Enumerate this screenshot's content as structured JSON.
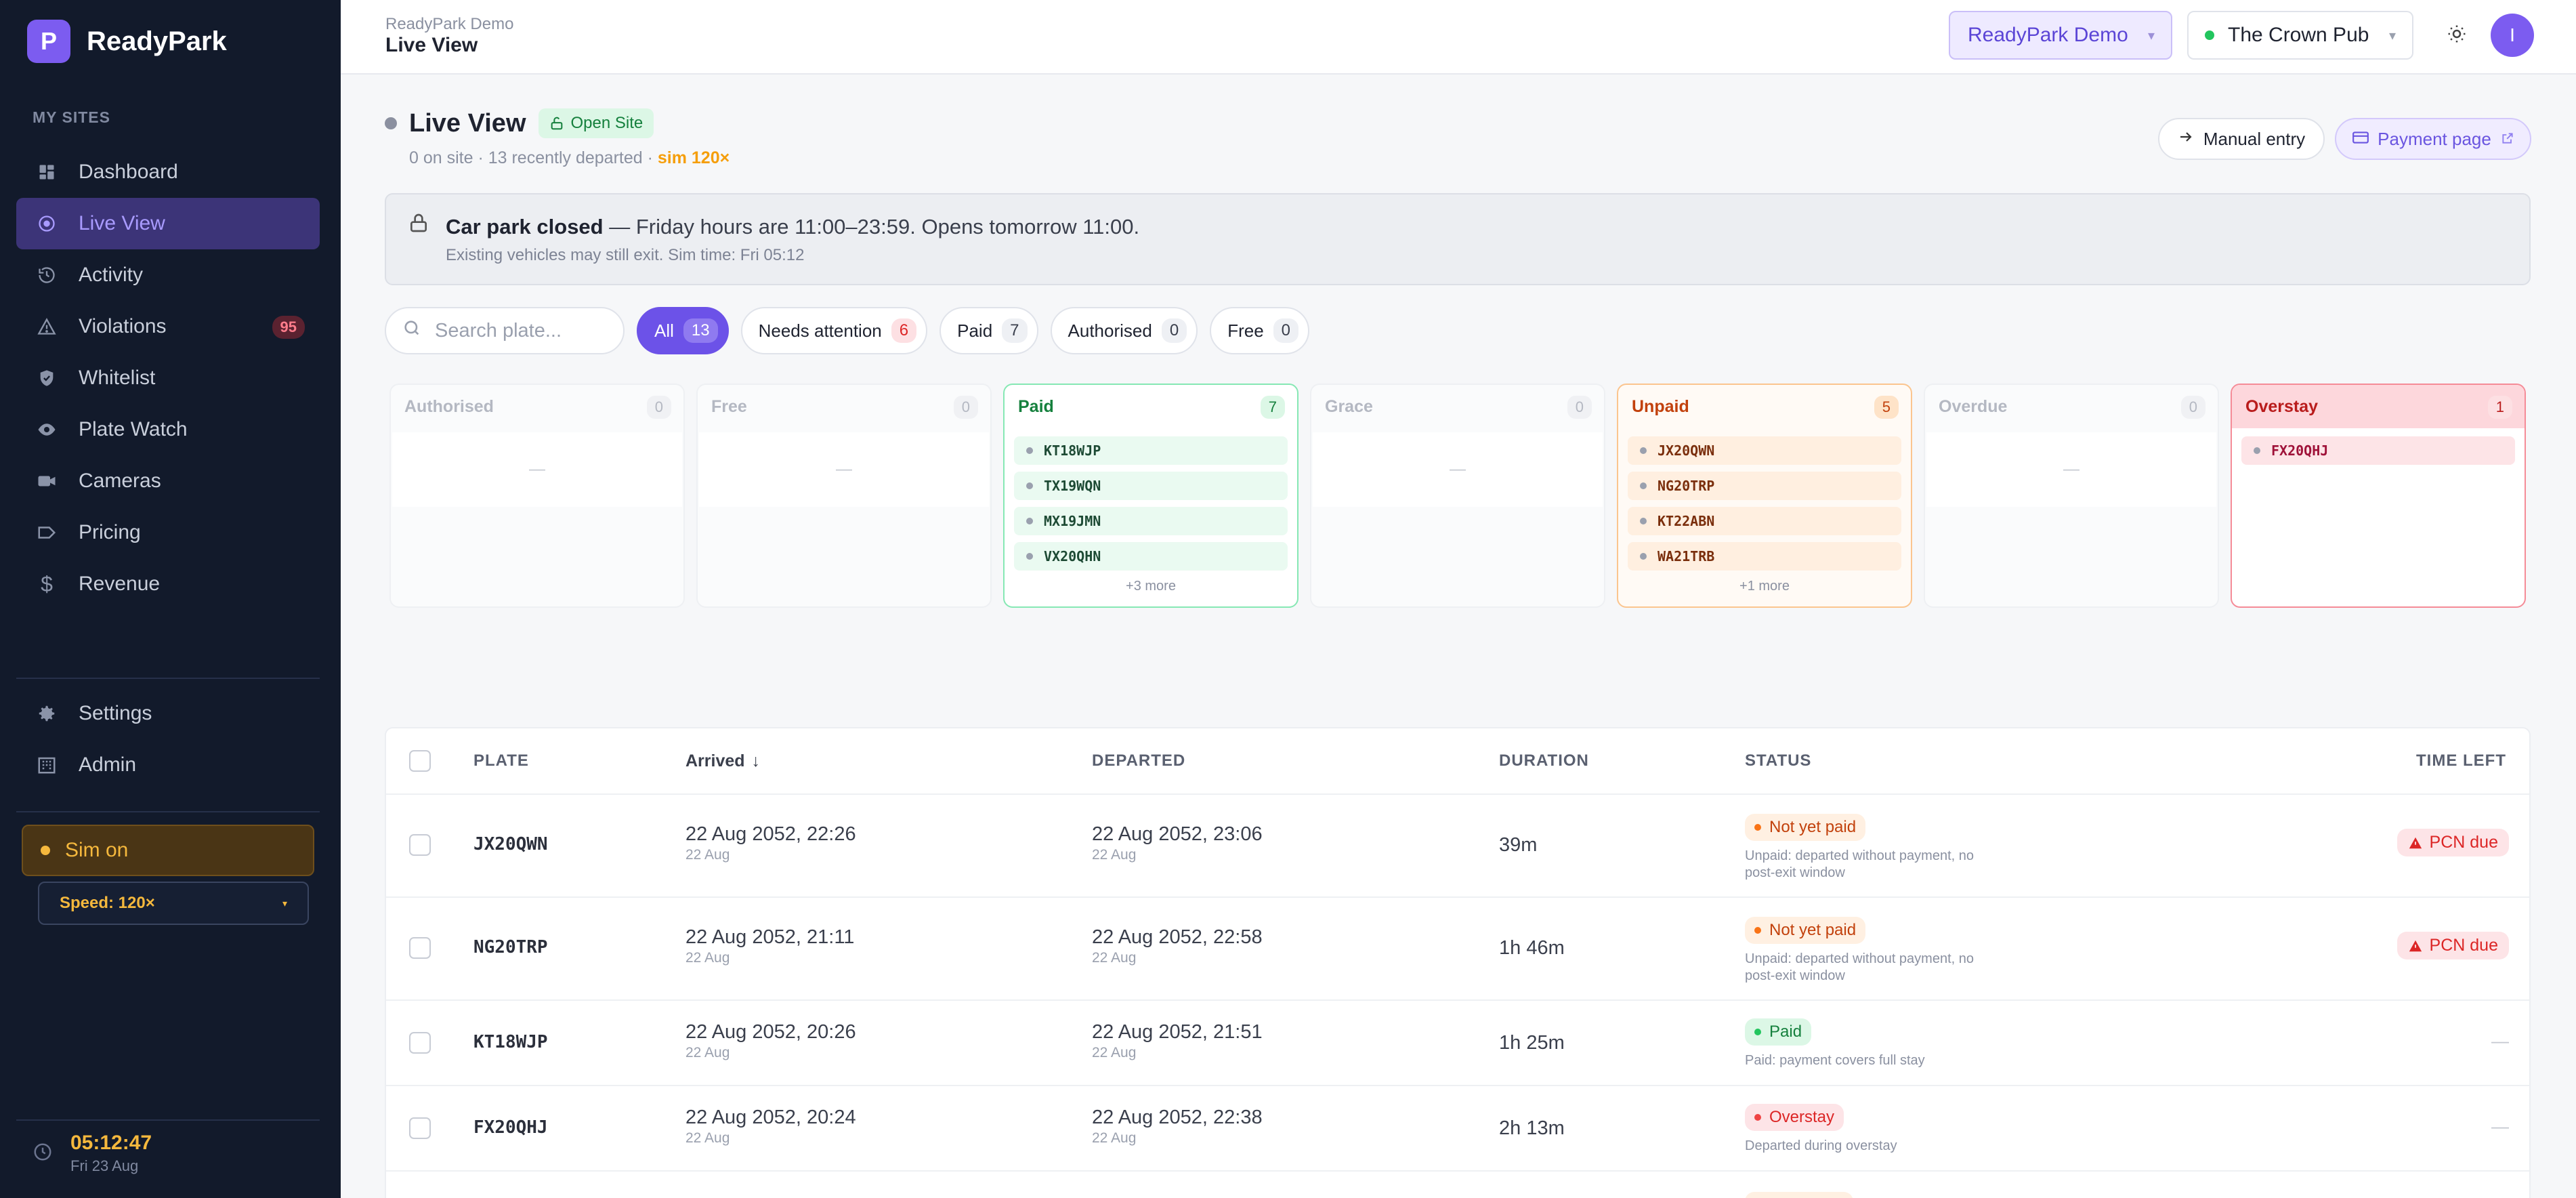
{
  "brand": {
    "logo_letter": "P",
    "name": "ReadyPark"
  },
  "sidebar": {
    "section_label": "MY SITES",
    "items": [
      {
        "label": "Dashboard",
        "icon": "dashboard-icon"
      },
      {
        "label": "Live View",
        "icon": "live-view-icon",
        "active": true
      },
      {
        "label": "Activity",
        "icon": "history-icon"
      },
      {
        "label": "Violations",
        "icon": "warning-icon",
        "badge": "95"
      },
      {
        "label": "Whitelist",
        "icon": "shield-check-icon"
      },
      {
        "label": "Plate Watch",
        "icon": "eye-icon"
      },
      {
        "label": "Cameras",
        "icon": "camera-icon"
      },
      {
        "label": "Pricing",
        "icon": "tag-icon"
      },
      {
        "label": "Revenue",
        "icon": "dollar-icon"
      }
    ],
    "admin_items": [
      {
        "label": "Settings",
        "icon": "gear-icon"
      },
      {
        "label": "Admin",
        "icon": "building-icon"
      }
    ],
    "sim_label": "Sim on",
    "speed_label": "Speed: 120×",
    "clock_time": "05:12:47",
    "clock_date": "Fri 23 Aug"
  },
  "topbar": {
    "breadcrumb_small": "ReadyPark Demo",
    "breadcrumb_title": "Live View",
    "org_select": "ReadyPark Demo",
    "site_select": "The Crown Pub",
    "avatar_letter": "I"
  },
  "page": {
    "title": "Live View",
    "open_badge": "Open Site",
    "subtitle": "0 on site · 13 recently departed · ",
    "sim_speed": "sim 120×",
    "manual_entry": "Manual entry",
    "payment_page": "Payment page"
  },
  "banner": {
    "title": "Car park closed",
    "message": " — Friday hours are 11:00–23:59. Opens tomorrow 11:00.",
    "sub": "Existing vehicles may still exit. Sim time: Fri 05:12"
  },
  "search": {
    "placeholder": "Search plate..."
  },
  "filters": [
    {
      "label": "All",
      "count": "13",
      "active": true
    },
    {
      "label": "Needs attention",
      "count": "6",
      "red": true
    },
    {
      "label": "Paid",
      "count": "7"
    },
    {
      "label": "Authorised",
      "count": "0"
    },
    {
      "label": "Free",
      "count": "0"
    }
  ],
  "lanes": [
    {
      "name": "Authorised",
      "count": "0",
      "kind": "muted",
      "plates": [],
      "empty": "—"
    },
    {
      "name": "Free",
      "count": "0",
      "kind": "muted",
      "plates": [],
      "empty": "—"
    },
    {
      "name": "Paid",
      "count": "7",
      "kind": "paid",
      "plates": [
        "KT18WJP",
        "TX19WQN",
        "MX19JMN",
        "VX20QHN"
      ],
      "more": "+3 more"
    },
    {
      "name": "Grace",
      "count": "0",
      "kind": "muted",
      "plates": [],
      "empty": "—"
    },
    {
      "name": "Unpaid",
      "count": "5",
      "kind": "unpaid",
      "plates": [
        "JX20QWN",
        "NG20TRP",
        "KT22ABN",
        "WA21TRB"
      ],
      "more": "+1 more"
    },
    {
      "name": "Overdue",
      "count": "0",
      "kind": "muted",
      "plates": [],
      "empty": "—"
    },
    {
      "name": "Overstay",
      "count": "1",
      "kind": "overstay",
      "plates": [
        "FX20QHJ"
      ]
    }
  ],
  "table": {
    "headers": {
      "plate": "PLATE",
      "arrived": "Arrived",
      "sort_arrow": "↓",
      "departed": "DEPARTED",
      "duration": "DURATION",
      "status": "STATUS",
      "time_left": "TIME LEFT"
    },
    "rows": [
      {
        "plate": "JX20QWN",
        "arrived": "22 Aug 2052, 22:26",
        "arrived_sub": "22 Aug",
        "departed": "22 Aug 2052, 23:06",
        "departed_sub": "22 Aug",
        "duration": "39m",
        "status": "Not yet paid",
        "status_kind": "orange",
        "note": "Unpaid: departed without payment, no post-exit window",
        "time_left": "PCN due"
      },
      {
        "plate": "NG20TRP",
        "arrived": "22 Aug 2052, 21:11",
        "arrived_sub": "22 Aug",
        "departed": "22 Aug 2052, 22:58",
        "departed_sub": "22 Aug",
        "duration": "1h 46m",
        "status": "Not yet paid",
        "status_kind": "orange",
        "note": "Unpaid: departed without payment, no post-exit window",
        "time_left": "PCN due"
      },
      {
        "plate": "KT18WJP",
        "arrived": "22 Aug 2052, 20:26",
        "arrived_sub": "22 Aug",
        "departed": "22 Aug 2052, 21:51",
        "departed_sub": "22 Aug",
        "duration": "1h 25m",
        "status": "Paid",
        "status_kind": "green",
        "note": "Paid: payment covers full stay",
        "time_left": "—"
      },
      {
        "plate": "FX20QHJ",
        "arrived": "22 Aug 2052, 20:24",
        "arrived_sub": "22 Aug",
        "departed": "22 Aug 2052, 22:38",
        "departed_sub": "22 Aug",
        "duration": "2h 13m",
        "status": "Overstay",
        "status_kind": "red",
        "note": "Departed during overstay",
        "time_left": "—"
      }
    ]
  },
  "colors": {
    "accent": "#6c52e8",
    "sidebar_bg": "#121a2b",
    "sim": "#f5b83d"
  }
}
